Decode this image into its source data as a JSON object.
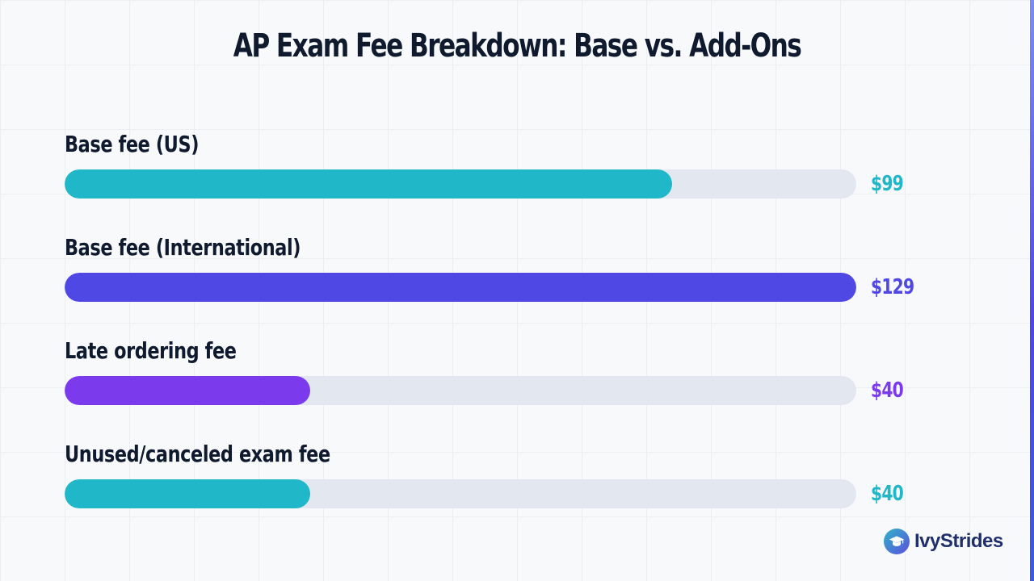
{
  "colors": {
    "teal": "#20b8c8",
    "indigo": "#5048e5",
    "violet": "#7c3aed",
    "track": "#e3e8f0",
    "text": "#0f1a2e"
  },
  "brand": {
    "icon": "graduation-cap-icon",
    "name": "IvyStrides"
  },
  "chart_data": {
    "type": "bar",
    "orientation": "horizontal",
    "title": "AP Exam Fee Breakdown: Base vs. Add-Ons",
    "xlim": [
      0,
      129
    ],
    "grid": false,
    "categories": [
      "Base fee (US)",
      "Base fee (International)",
      "Late ordering fee",
      "Unused/canceled exam fee"
    ],
    "values": [
      99,
      129,
      40,
      40
    ],
    "value_labels": [
      "$99",
      "$129",
      "$40",
      "$40"
    ],
    "bar_colors": [
      "#20b8c8",
      "#5048e5",
      "#7c3aed",
      "#20b8c8"
    ]
  }
}
